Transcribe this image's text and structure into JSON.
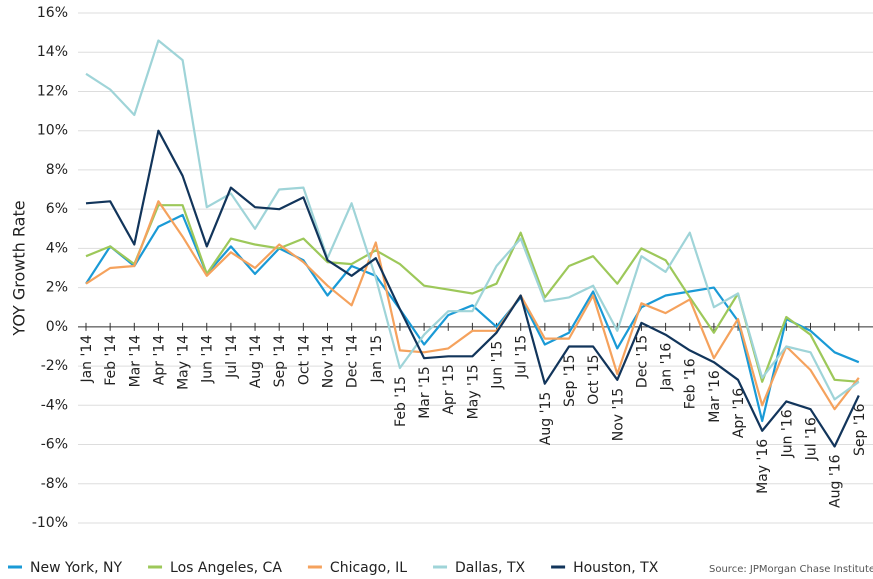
{
  "chart_data": {
    "type": "line",
    "ylabel": "YOY Growth Rate",
    "source": "Source:  JPMorgan Chase Institute",
    "categories": [
      "Jan '14",
      "Feb '14",
      "Mar '14",
      "Apr '14",
      "May '14",
      "Jun '14",
      "Jul '14",
      "Aug '14",
      "Sep '14",
      "Oct '14",
      "Nov '14",
      "Dec '14",
      "Jan '15",
      "Feb '15",
      "Mar '15",
      "Apr '15",
      "May '15",
      "Jun '15",
      "Jul '15",
      "Aug '15",
      "Sep '15",
      "Oct '15",
      "Nov '15",
      "Dec '15",
      "Jan '16",
      "Feb '16",
      "Mar '16",
      "Apr '16",
      "May '16",
      "Jun '16",
      "Jul '16",
      "Aug '16",
      "Sep '16"
    ],
    "ylim": [
      -10,
      16
    ],
    "yticks": [
      {
        "value": -10,
        "label": "-10%"
      },
      {
        "value": -8,
        "label": "-8%"
      },
      {
        "value": -6,
        "label": "-6%"
      },
      {
        "value": -4,
        "label": "-4%"
      },
      {
        "value": -2,
        "label": "-2%"
      },
      {
        "value": 0,
        "label": "0%"
      },
      {
        "value": 2,
        "label": "2%"
      },
      {
        "value": 4,
        "label": "4%"
      },
      {
        "value": 6,
        "label": "6%"
      },
      {
        "value": 8,
        "label": "8%"
      },
      {
        "value": 10,
        "label": "10%"
      },
      {
        "value": 12,
        "label": "12%"
      },
      {
        "value": 14,
        "label": "14%"
      },
      {
        "value": 16,
        "label": "16%"
      }
    ],
    "grid": true,
    "legend": "bottom",
    "series": [
      {
        "name": "New York, NY",
        "color": "#1a9ad6",
        "values": [
          2.2,
          4.1,
          3.1,
          5.1,
          5.7,
          2.7,
          4.1,
          2.7,
          4.0,
          3.4,
          1.6,
          3.1,
          2.6,
          0.9,
          -0.9,
          0.6,
          1.1,
          0.0,
          1.5,
          -0.9,
          -0.3,
          1.8,
          -1.1,
          1.0,
          1.6,
          1.8,
          2.0,
          0.3,
          -4.8,
          0.4,
          -0.2,
          -1.3,
          -1.8
        ]
      },
      {
        "name": "Los Angeles, CA",
        "color": "#9dc85a",
        "values": [
          3.6,
          4.1,
          3.2,
          6.2,
          6.2,
          2.7,
          4.5,
          4.2,
          4.0,
          4.5,
          3.3,
          3.2,
          3.9,
          3.2,
          2.1,
          1.9,
          1.7,
          2.2,
          4.8,
          1.5,
          3.1,
          3.6,
          2.2,
          4.0,
          3.4,
          1.5,
          -0.3,
          1.7,
          -2.8,
          0.5,
          -0.4,
          -2.7,
          -2.8
        ]
      },
      {
        "name": "Chicago, IL",
        "color": "#f5a25d",
        "values": [
          2.2,
          3.0,
          3.1,
          6.4,
          4.6,
          2.6,
          3.8,
          3.0,
          4.2,
          3.3,
          2.1,
          1.1,
          4.3,
          -1.2,
          -1.3,
          -1.1,
          -0.2,
          -0.2,
          1.6,
          -0.6,
          -0.6,
          1.6,
          -2.4,
          1.2,
          0.7,
          1.4,
          -1.6,
          0.4,
          -4.0,
          -1.0,
          -2.2,
          -4.2,
          -2.6
        ]
      },
      {
        "name": "Dallas, TX",
        "color": "#9fd4d8",
        "values": [
          12.9,
          12.1,
          10.8,
          14.6,
          13.6,
          6.1,
          6.8,
          5.0,
          7.0,
          7.1,
          3.5,
          6.3,
          2.5,
          -2.1,
          -0.4,
          0.8,
          0.8,
          3.1,
          4.5,
          1.3,
          1.5,
          2.1,
          -0.2,
          3.6,
          2.8,
          4.8,
          1.0,
          1.7,
          -2.6,
          -1.0,
          -1.3,
          -3.7,
          -2.8
        ]
      },
      {
        "name": "Houston, TX",
        "color": "#12355b",
        "values": [
          6.3,
          6.4,
          4.2,
          10.0,
          7.7,
          4.1,
          7.1,
          6.1,
          6.0,
          6.6,
          3.4,
          2.6,
          3.5,
          0.9,
          -1.6,
          -1.5,
          -1.5,
          -0.3,
          1.6,
          -2.9,
          -1.0,
          -1.0,
          -2.7,
          0.2,
          -0.4,
          -1.2,
          -1.8,
          -2.7,
          -5.3,
          -3.8,
          -4.2,
          -6.1,
          -3.5
        ]
      }
    ]
  }
}
